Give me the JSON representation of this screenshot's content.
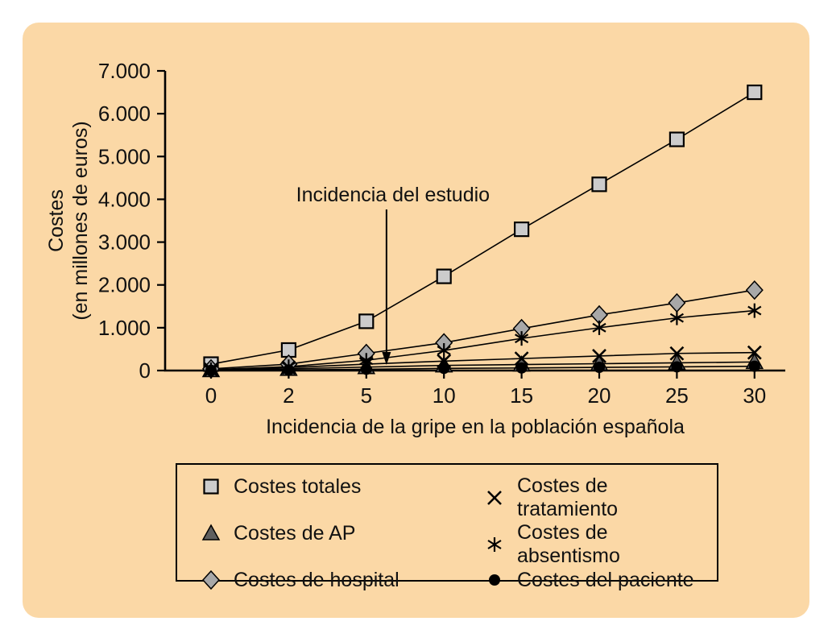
{
  "figure": {
    "background_color": "#fbd8a6",
    "axis_color": "#000000",
    "text_color": "#111111"
  },
  "chart_data": {
    "type": "line",
    "title": "",
    "xlabel": "Incidencia de la gripe en la población española",
    "ylabel_line1": "Costes",
    "ylabel_line2": "(en millones de euros)",
    "categories": [
      "0",
      "2",
      "5",
      "10",
      "15",
      "20",
      "25",
      "30"
    ],
    "ylim": [
      0,
      7000
    ],
    "y_tick_labels": [
      "0",
      "1.000",
      "2.000",
      "3.000",
      "4.000",
      "5.000",
      "6.000",
      "7.000"
    ],
    "grid": false,
    "annotation": {
      "text": "Incidencia del estudio",
      "x_index": 2.26
    },
    "series": [
      {
        "name": "Costes totales",
        "marker": "square",
        "fill": "#cccccc",
        "values": [
          150,
          480,
          1150,
          2200,
          3300,
          4350,
          5400,
          6500
        ]
      },
      {
        "name": "Costes de AP",
        "marker": "triangle",
        "fill": "#5f5f5f",
        "values": [
          10,
          40,
          80,
          120,
          140,
          160,
          180,
          200
        ]
      },
      {
        "name": "Costes de hospital",
        "marker": "diamond",
        "fill": "#a8a8a8",
        "values": [
          40,
          150,
          400,
          650,
          980,
          1300,
          1580,
          1880
        ]
      },
      {
        "name": "Costes de tratamiento",
        "marker": "x",
        "fill": "#000000",
        "values": [
          20,
          70,
          150,
          220,
          280,
          340,
          400,
          420
        ]
      },
      {
        "name": "Costes de absentismo",
        "marker": "asterisk",
        "fill": "#000000",
        "values": [
          20,
          90,
          240,
          470,
          750,
          1000,
          1230,
          1400
        ]
      },
      {
        "name": "Costes del paciente",
        "marker": "circle",
        "fill": "#000000",
        "values": [
          5,
          15,
          30,
          50,
          60,
          75,
          85,
          100
        ]
      }
    ],
    "legend": {
      "position": "bottom",
      "columns": [
        [
          0,
          1,
          2
        ],
        [
          3,
          4,
          5
        ]
      ]
    }
  }
}
